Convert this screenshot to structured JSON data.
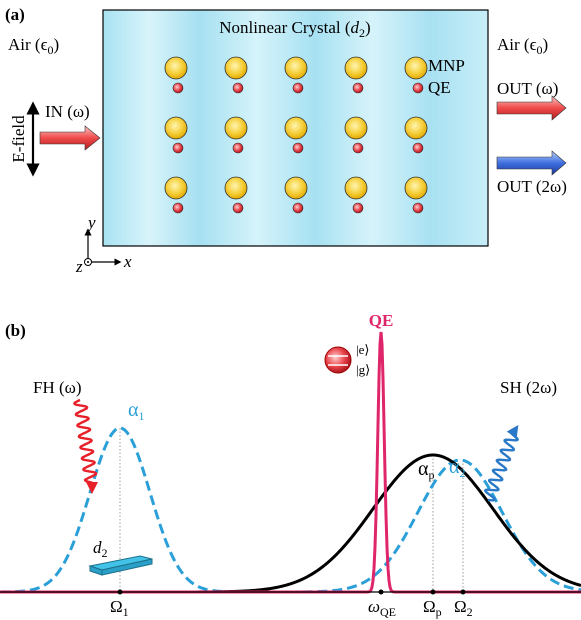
{
  "panel_a": {
    "label": "(a)",
    "crystal": {
      "pre": "Nonlinear Crystal (",
      "sym": "d",
      "sub": "2",
      "post": ")"
    },
    "air_left": {
      "pre": "Air (",
      "sym": "ϵ",
      "sub": "0",
      "post": ")"
    },
    "air_right": {
      "pre": "Air (",
      "sym": "ϵ",
      "sub": "0",
      "post": ")"
    },
    "mnp": "MNP",
    "qe": "QE",
    "out_fh": "OUT (ω)",
    "out_sh": "OUT (2ω)",
    "in": "IN (ω)",
    "efield": "E-field",
    "axes": {
      "y": "y",
      "x": "x",
      "z": "z"
    }
  },
  "panel_b": {
    "label": "(b)",
    "qe": "QE",
    "ket_e": "|e⟩",
    "ket_g": "|g⟩",
    "fh": "FH (ω)",
    "sh": "SH (2ω)",
    "alpha1": {
      "sym": "α",
      "sub": "1"
    },
    "alphap": {
      "sym": "α",
      "sub": "p"
    },
    "alpha2": {
      "sym": "α",
      "sub": "2"
    },
    "crystal": {
      "sym": "d",
      "sub": "2"
    },
    "omega1": {
      "sym": "Ω",
      "sub": "1"
    },
    "omegaqe": {
      "sym": "ω",
      "sub": "QE"
    },
    "omegap": {
      "sym": "Ω",
      "sub": "p"
    },
    "omega2": {
      "sym": "Ω",
      "sub": "2"
    }
  }
}
